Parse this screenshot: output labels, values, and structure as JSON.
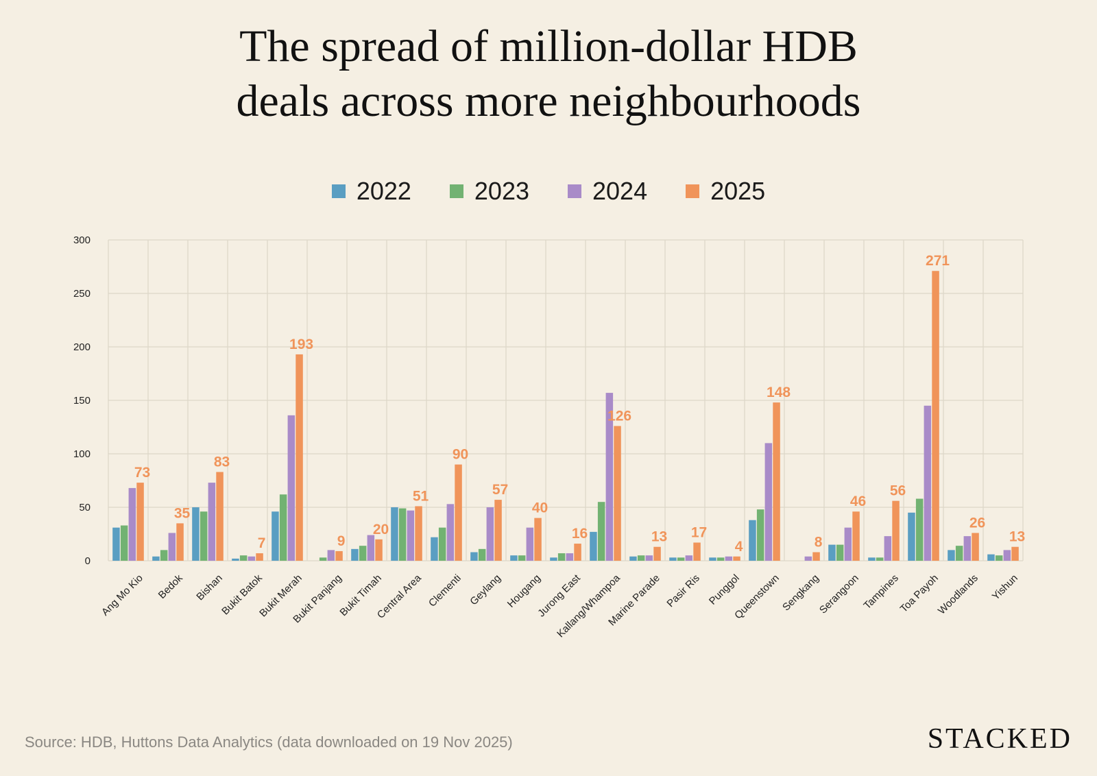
{
  "title_lines": [
    "The spread of million-dollar HDB",
    "deals across more neighbourhoods"
  ],
  "source": "Source: HDB, Huttons Data Analytics (data downloaded on 19 Nov 2025)",
  "brand": "STACKED",
  "colors": {
    "background": "#f5efe3",
    "grid": "#ddd6c8",
    "label_accent": "#f0945a"
  },
  "chart_data": {
    "type": "bar",
    "title": "The spread of million-dollar HDB deals across more neighbourhoods",
    "xlabel": "",
    "ylabel": "",
    "ylim": [
      0,
      300
    ],
    "yticks": [
      0,
      50,
      100,
      150,
      200,
      250,
      300
    ],
    "grid": true,
    "legend_position": "top-center",
    "categories": [
      "Ang Mo Kio",
      "Bedok",
      "Bishan",
      "Bukit Batok",
      "Bukit Merah",
      "Bukit Panjang",
      "Bukit Timah",
      "Central Area",
      "Clementi",
      "Geylang",
      "Hougang",
      "Jurong East",
      "Kallang/Whampoa",
      "Marine Parade",
      "Pasir Ris",
      "Punggol",
      "Queenstown",
      "Sengkang",
      "Serangoon",
      "Tampines",
      "Toa Payoh",
      "Woodlands",
      "Yishun"
    ],
    "series": [
      {
        "name": "2022",
        "color": "#5a9ec2",
        "values": [
          31,
          4,
          50,
          2,
          46,
          0,
          11,
          50,
          22,
          8,
          5,
          3,
          27,
          4,
          3,
          3,
          38,
          0,
          15,
          3,
          45,
          10,
          6
        ]
      },
      {
        "name": "2023",
        "color": "#72b272",
        "values": [
          33,
          10,
          46,
          5,
          62,
          3,
          14,
          49,
          31,
          11,
          5,
          7,
          55,
          5,
          3,
          3,
          48,
          0,
          15,
          3,
          58,
          14,
          5
        ]
      },
      {
        "name": "2024",
        "color": "#a98bc8",
        "values": [
          68,
          26,
          73,
          4,
          136,
          10,
          24,
          47,
          53,
          50,
          31,
          7,
          157,
          5,
          5,
          4,
          110,
          4,
          31,
          23,
          145,
          23,
          10
        ]
      },
      {
        "name": "2025",
        "color": "#f0945a",
        "values": [
          73,
          35,
          83,
          7,
          193,
          9,
          20,
          51,
          90,
          57,
          40,
          16,
          126,
          13,
          17,
          4,
          148,
          8,
          46,
          56,
          271,
          26,
          13
        ]
      }
    ],
    "data_labels_series": "2025"
  }
}
